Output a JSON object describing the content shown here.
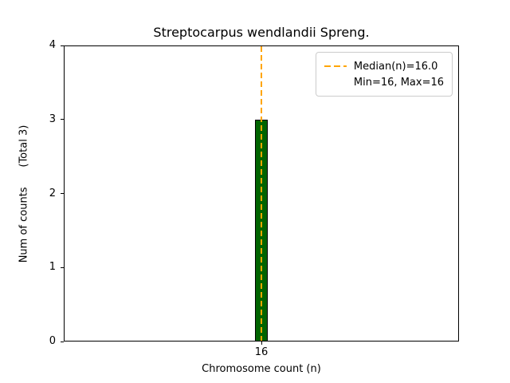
{
  "chart_data": {
    "type": "bar",
    "title": "Streptocarpus wendlandii Spreng.",
    "xlabel": "Chromosome count (n)",
    "ylabel": "Num of counts      (Total 3)",
    "categories": [
      "16"
    ],
    "values": [
      3
    ],
    "ylim": [
      0,
      4
    ],
    "yticks": [
      0,
      1,
      2,
      3,
      4
    ],
    "median": 16.0,
    "min": 16,
    "max": 16,
    "legend": [
      {
        "label": "Median(n)=16.0",
        "swatch": "orange-dashed-line"
      },
      {
        "label": "Min=16, Max=16",
        "swatch": "none"
      }
    ],
    "bar_color": "#006400",
    "bar_edge_color": "#000000",
    "median_line_color": "#FFA500",
    "layout": {
      "bar_center_frac": 0.5,
      "bar_width_frac": 0.031,
      "legend_position": "upper right",
      "grid": false
    }
  }
}
